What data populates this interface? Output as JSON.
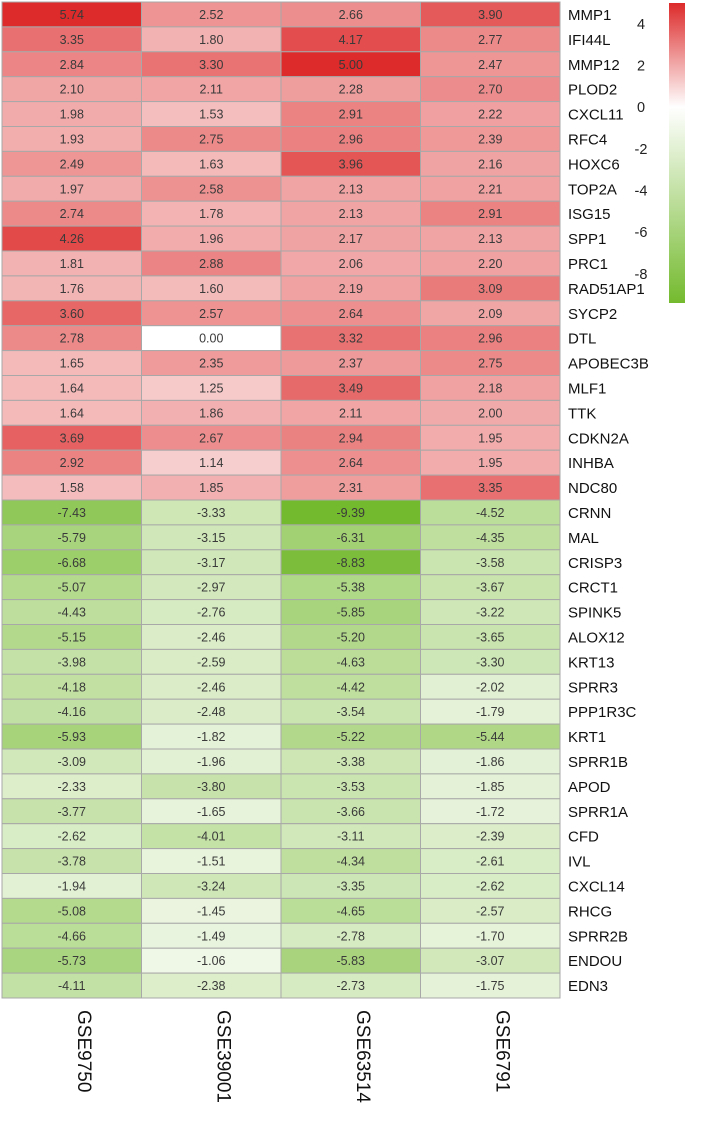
{
  "chart_data": {
    "type": "heatmap",
    "columns": [
      "GSE9750",
      "GSE39001",
      "GSE63514",
      "GSE6791"
    ],
    "rows": [
      "MMP1",
      "IFI44L",
      "MMP12",
      "PLOD2",
      "CXCL11",
      "RFC4",
      "HOXC6",
      "TOP2A",
      "ISG15",
      "SPP1",
      "PRC1",
      "RAD51AP1",
      "SYCP2",
      "DTL",
      "APOBEC3B",
      "MLF1",
      "TTK",
      "CDKN2A",
      "INHBA",
      "NDC80",
      "CRNN",
      "MAL",
      "CRISP3",
      "CRCT1",
      "SPINK5",
      "ALOX12",
      "KRT13",
      "SPRR3",
      "PPP1R3C",
      "KRT1",
      "SPRR1B",
      "APOD",
      "SPRR1A",
      "CFD",
      "IVL",
      "CXCL14",
      "RHCG",
      "SPRR2B",
      "ENDOU",
      "EDN3"
    ],
    "values": [
      [
        5.74,
        2.52,
        2.66,
        3.9
      ],
      [
        3.35,
        1.8,
        4.17,
        2.77
      ],
      [
        2.84,
        3.3,
        5.0,
        2.47
      ],
      [
        2.1,
        2.11,
        2.28,
        2.7
      ],
      [
        1.98,
        1.53,
        2.91,
        2.22
      ],
      [
        1.93,
        2.75,
        2.96,
        2.39
      ],
      [
        2.49,
        1.63,
        3.96,
        2.16
      ],
      [
        1.97,
        2.58,
        2.13,
        2.21
      ],
      [
        2.74,
        1.78,
        2.13,
        2.91
      ],
      [
        4.26,
        1.96,
        2.17,
        2.13
      ],
      [
        1.81,
        2.88,
        2.06,
        2.2
      ],
      [
        1.76,
        1.6,
        2.19,
        3.09
      ],
      [
        3.6,
        2.57,
        2.64,
        2.09
      ],
      [
        2.78,
        0.0,
        3.32,
        2.96
      ],
      [
        1.65,
        2.35,
        2.37,
        2.75
      ],
      [
        1.64,
        1.25,
        3.49,
        2.18
      ],
      [
        1.64,
        1.86,
        2.11,
        2.0
      ],
      [
        3.69,
        2.67,
        2.94,
        1.95
      ],
      [
        2.92,
        1.14,
        2.64,
        1.95
      ],
      [
        1.58,
        1.85,
        2.31,
        3.35
      ],
      [
        -7.43,
        -3.33,
        -9.39,
        -4.52
      ],
      [
        -5.79,
        -3.15,
        -6.31,
        -4.35
      ],
      [
        -6.68,
        -3.17,
        -8.83,
        -3.58
      ],
      [
        -5.07,
        -2.97,
        -5.38,
        -3.67
      ],
      [
        -4.43,
        -2.76,
        -5.85,
        -3.22
      ],
      [
        -5.15,
        -2.46,
        -5.2,
        -3.65
      ],
      [
        -3.98,
        -2.59,
        -4.63,
        -3.3
      ],
      [
        -4.18,
        -2.46,
        -4.42,
        -2.02
      ],
      [
        -4.16,
        -2.48,
        -3.54,
        -1.79
      ],
      [
        -5.93,
        -1.82,
        -5.22,
        -5.44
      ],
      [
        -3.09,
        -1.96,
        -3.38,
        -1.86
      ],
      [
        -2.33,
        -3.8,
        -3.53,
        -1.85
      ],
      [
        -3.77,
        -1.65,
        -3.66,
        -1.72
      ],
      [
        -2.62,
        -4.01,
        -3.11,
        -2.39
      ],
      [
        -3.78,
        -1.51,
        -4.34,
        -2.61
      ],
      [
        -1.94,
        -3.24,
        -3.35,
        -2.62
      ],
      [
        -5.08,
        -1.45,
        -4.65,
        -2.57
      ],
      [
        -4.66,
        -1.49,
        -2.78,
        -1.7
      ],
      [
        -5.73,
        -1.06,
        -5.83,
        -3.07
      ],
      [
        -4.11,
        -2.38,
        -2.73,
        -1.75
      ]
    ],
    "value_format": "2 decimals",
    "colorbar": {
      "ticks": [
        "4",
        "2",
        "0",
        "-2",
        "-4",
        "-6",
        "-8"
      ],
      "tick_values": [
        4,
        2,
        0,
        -2,
        -4,
        -6,
        -8
      ],
      "range": [
        -9.4,
        5.0
      ],
      "colors": {
        "max": "#dd2a2a",
        "mid": "#ffffff",
        "min": "#74ba2e"
      }
    },
    "cell_border_color": "#a8a8a8",
    "legend_position": "top-right",
    "title": "",
    "xlabel": "",
    "ylabel": ""
  }
}
